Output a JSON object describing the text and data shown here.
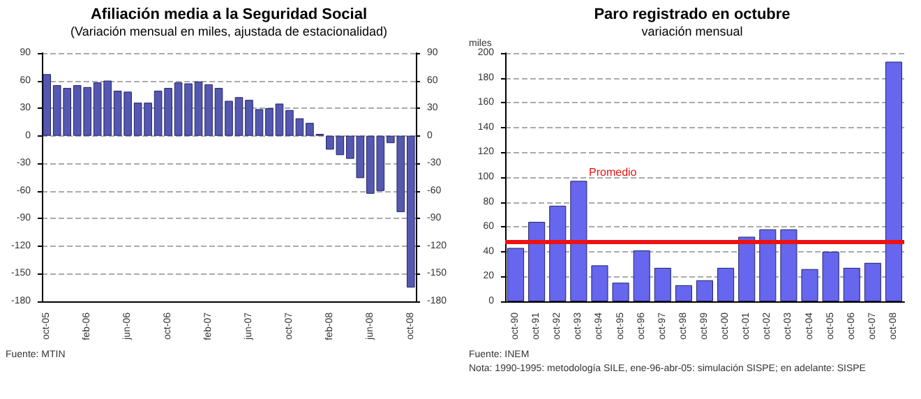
{
  "chart_data": [
    {
      "type": "bar",
      "title": "Afiliación media a la Seguridad Social",
      "subtitle": "(Variación mensual en miles, ajustada de estacionalidad)",
      "categories": [
        "oct-05",
        null,
        null,
        null,
        "feb-06",
        null,
        null,
        null,
        "jun-06",
        null,
        null,
        null,
        "oct-06",
        null,
        null,
        null,
        "feb-07",
        null,
        null,
        null,
        "jun-07",
        null,
        null,
        null,
        "oct-07",
        null,
        null,
        null,
        "feb-08",
        null,
        null,
        null,
        "jun-08",
        null,
        null,
        null,
        "oct-08"
      ],
      "values": [
        67,
        55,
        52,
        55,
        53,
        58,
        60,
        49,
        48,
        36,
        36,
        49,
        52,
        58,
        57,
        59,
        56,
        52,
        38,
        42,
        39,
        29,
        30,
        35,
        28,
        19,
        14,
        2,
        -15,
        -21,
        -25,
        -46,
        -63,
        -60,
        -8,
        -83,
        -165
      ],
      "color": "#5558b0",
      "ylim": [
        -180,
        90
      ],
      "yticks": [
        -180,
        -150,
        -120,
        -90,
        -60,
        -30,
        0,
        30,
        60,
        90
      ],
      "y2lim": [
        -180,
        90
      ],
      "y2ticks": [
        -180,
        -150,
        -120,
        -90,
        -60,
        -30,
        0,
        30,
        60,
        90
      ],
      "grid": "y",
      "annotations": [
        "Fuente: MTIN"
      ]
    },
    {
      "type": "bar",
      "title": "Paro registrado en octubre",
      "subtitle": "variación mensual",
      "ylabel": "miles",
      "categories": [
        "oct-90",
        "oct-91",
        "oct-92",
        "oct-93",
        "oct-94",
        "oct-95",
        "oct-96",
        "oct-97",
        "oct-98",
        "oct-99",
        "oct-00",
        "oct-01",
        "oct-02",
        "oct-03",
        "oct-04",
        "oct-05",
        "oct-06",
        "oct-07",
        "oct-08"
      ],
      "values": [
        43,
        64,
        77,
        97,
        29,
        15,
        41,
        27,
        13,
        17,
        27,
        52,
        58,
        58,
        26,
        40,
        27,
        31,
        193
      ],
      "color": "#6666ee",
      "ylim": [
        0,
        200
      ],
      "yticks": [
        0,
        20,
        40,
        60,
        80,
        100,
        120,
        140,
        160,
        180,
        200
      ],
      "ref_lines": [
        {
          "axis": "y",
          "value": 48,
          "label": "Promedio",
          "color": "#ee1111"
        }
      ],
      "grid": "y",
      "annotations": [
        "Fuente: INEM",
        "Nota: 1990-1995: metodología SILE, ene-96-abr-05: simulación SISPE; en adelante: SISPE"
      ]
    }
  ]
}
